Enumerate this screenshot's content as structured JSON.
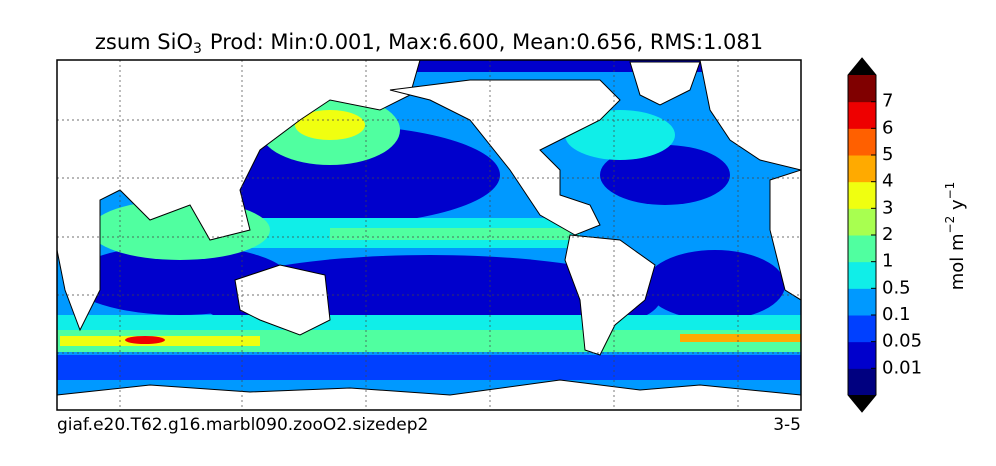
{
  "title": {
    "prefix": "zsum SiO",
    "subscript": "3",
    "rest": "Prod: Min:0.001, Max:6.600, Mean:0.656, RMS:1.081"
  },
  "colorbar": {
    "ticks": [
      {
        "value": 0.01,
        "label": "0.01"
      },
      {
        "value": 0.05,
        "label": "0.05"
      },
      {
        "value": 0.1,
        "label": "0.1"
      },
      {
        "value": 0.5,
        "label": "0.5"
      },
      1,
      2,
      3,
      4,
      5,
      6,
      7
    ],
    "colors": [
      "#000080",
      "#0000cc",
      "#0040ff",
      "#0099ff",
      "#10eee8",
      "#50ffa0",
      "#a8ff50",
      "#f0ff10",
      "#ffaa00",
      "#ff6000",
      "#ee0000",
      "#800000"
    ],
    "extend_color": "#000000",
    "label": {
      "base": "mol m",
      "exp1": "−2",
      "mid": " y",
      "exp2": "−1"
    }
  },
  "footer": {
    "left": "giaf.e20.T62.g16.marbl090.zooO2.sizedep2",
    "right": "3-5"
  }
}
